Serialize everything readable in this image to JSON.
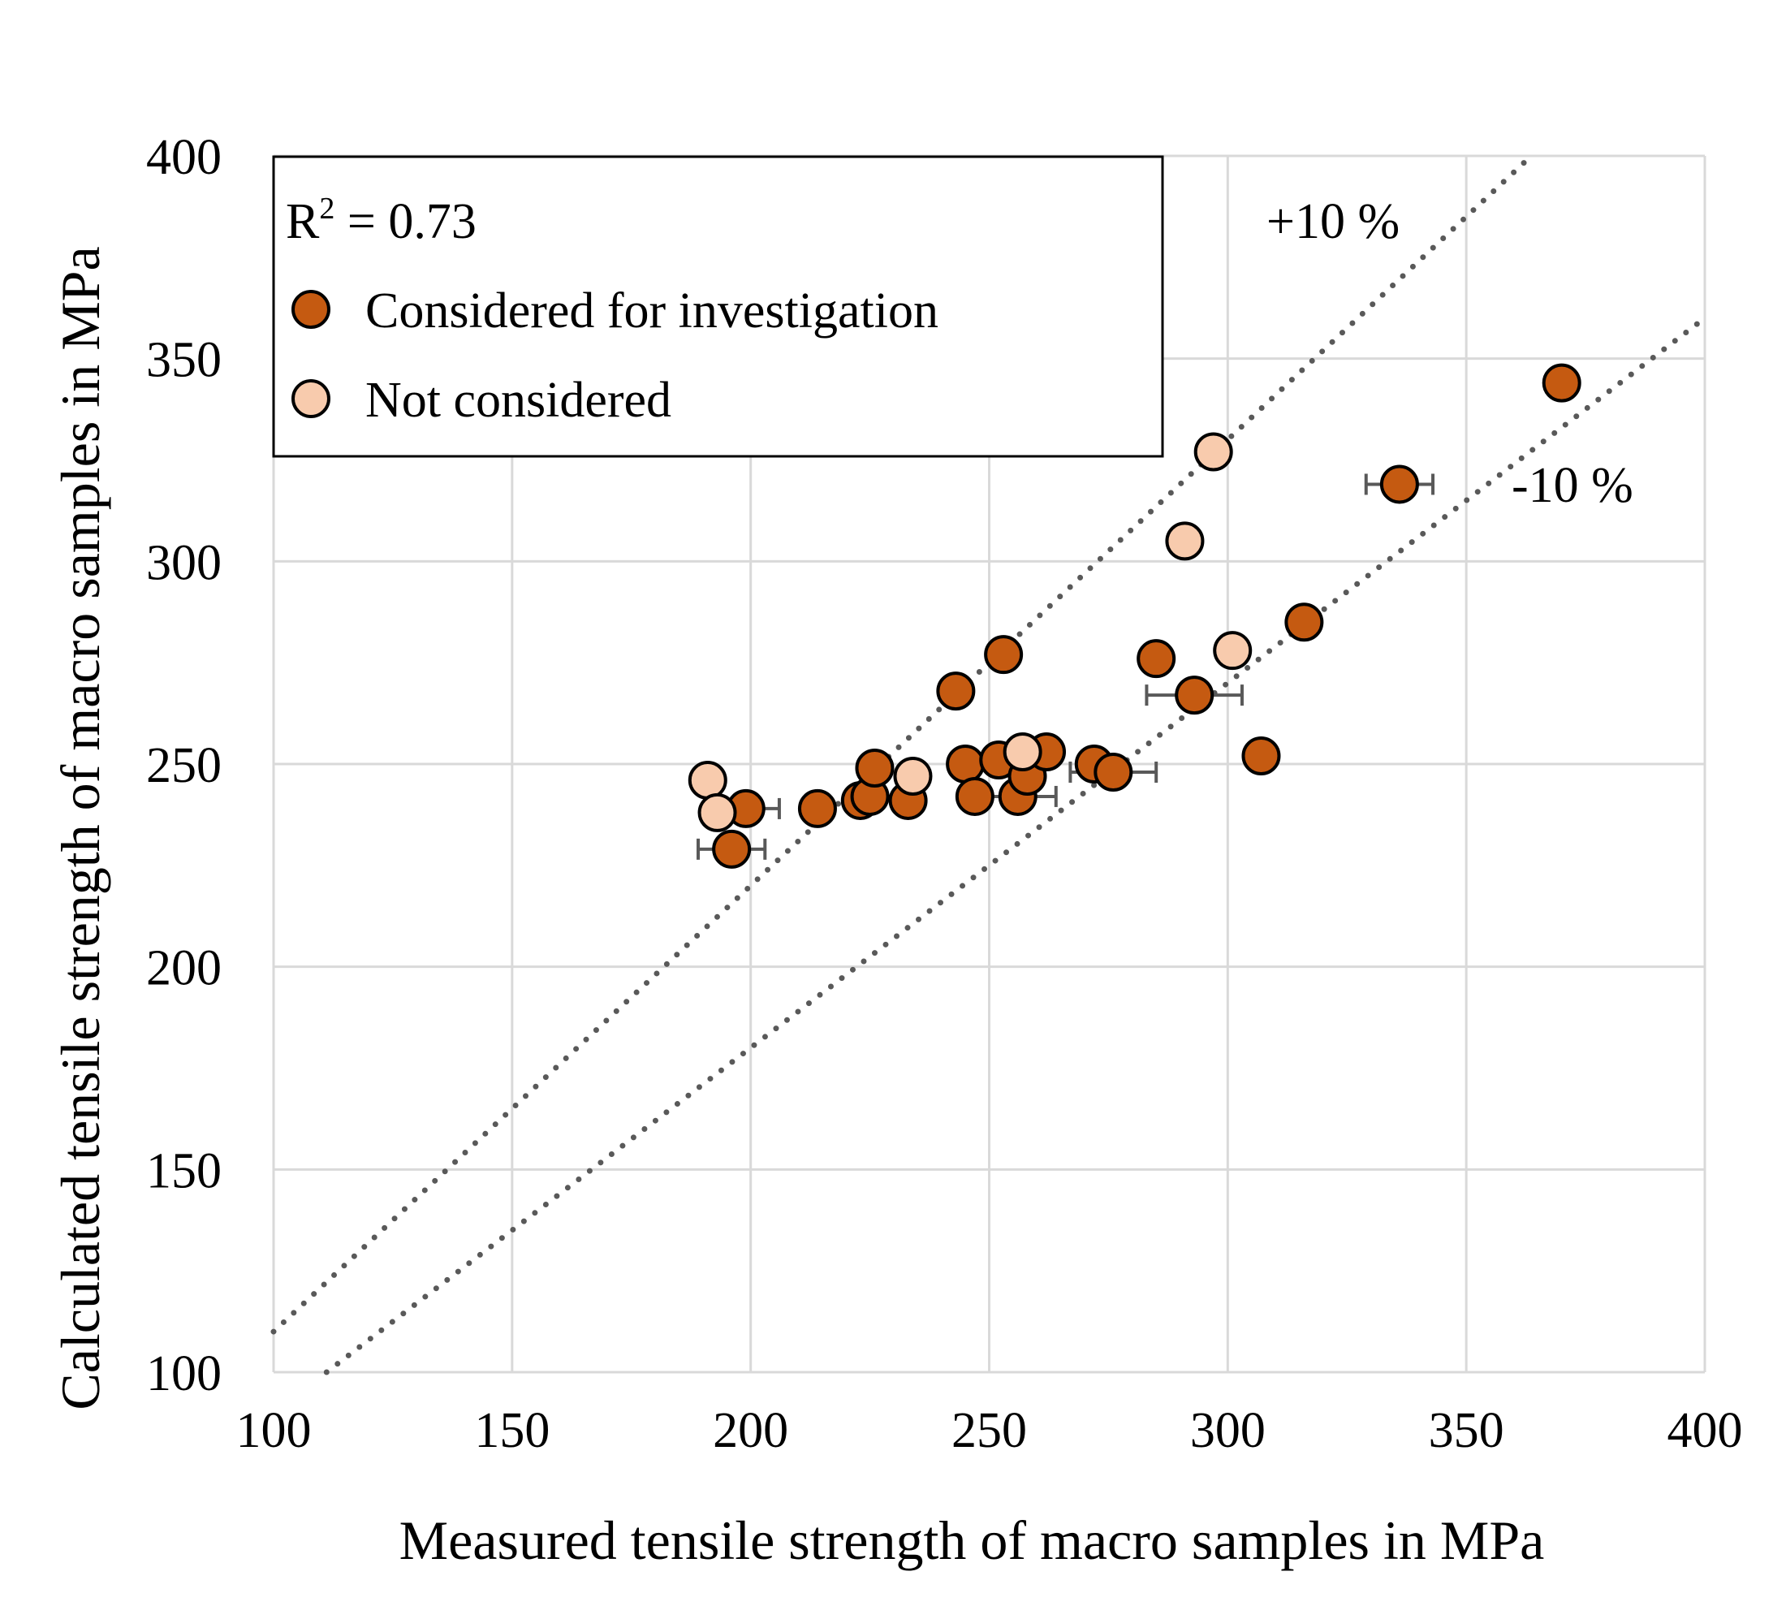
{
  "chart_data": {
    "type": "scatter",
    "xlabel": "Measured tensile strength of macro samples in MPa",
    "ylabel": "Calculated tensile strength of macro samples in MPa",
    "xlim": [
      100,
      400
    ],
    "ylim": [
      100,
      400
    ],
    "x_ticks": [
      "100",
      "150",
      "200",
      "250",
      "300",
      "350",
      "400"
    ],
    "y_ticks": [
      "100",
      "150",
      "200",
      "250",
      "300",
      "350",
      "400"
    ],
    "grid": true,
    "legend_position": "top-left",
    "r2_label": "R",
    "r2_sup": "2",
    "r2_value": " = 0.73",
    "guide_lines": [
      {
        "label": "+10 %",
        "slope": 1.1
      },
      {
        "label": "-10 %",
        "slope": 0.9
      }
    ],
    "series": [
      {
        "name": "Considered for investigation",
        "color": "#c55a11",
        "points": [
          {
            "x": 196,
            "y": 229,
            "xerr": 7
          },
          {
            "x": 199,
            "y": 239,
            "xerr": 7
          },
          {
            "x": 214,
            "y": 239,
            "xerr": 0
          },
          {
            "x": 223,
            "y": 241,
            "xerr": 0
          },
          {
            "x": 225,
            "y": 242,
            "xerr": 0
          },
          {
            "x": 226,
            "y": 249,
            "xerr": 0
          },
          {
            "x": 233,
            "y": 241,
            "xerr": 0
          },
          {
            "x": 243,
            "y": 268,
            "xerr": 0
          },
          {
            "x": 245,
            "y": 250,
            "xerr": 0
          },
          {
            "x": 247,
            "y": 242,
            "xerr": 0
          },
          {
            "x": 252,
            "y": 251,
            "xerr": 0
          },
          {
            "x": 253,
            "y": 277,
            "xerr": 0
          },
          {
            "x": 256,
            "y": 242,
            "xerr": 8
          },
          {
            "x": 258,
            "y": 247,
            "xerr": 0
          },
          {
            "x": 262,
            "y": 253,
            "xerr": 0
          },
          {
            "x": 272,
            "y": 250,
            "xerr": 0
          },
          {
            "x": 276,
            "y": 248,
            "xerr": 9
          },
          {
            "x": 285,
            "y": 276,
            "xerr": 0
          },
          {
            "x": 293,
            "y": 267,
            "xerr": 10
          },
          {
            "x": 307,
            "y": 252,
            "xerr": 0
          },
          {
            "x": 316,
            "y": 285,
            "xerr": 0
          },
          {
            "x": 336,
            "y": 319,
            "xerr": 7
          },
          {
            "x": 370,
            "y": 344,
            "xerr": 0
          }
        ]
      },
      {
        "name": "Not considered",
        "color": "#f8cbad",
        "points": [
          {
            "x": 191,
            "y": 246,
            "xerr": 0
          },
          {
            "x": 193,
            "y": 238,
            "xerr": 0
          },
          {
            "x": 234,
            "y": 247,
            "xerr": 0
          },
          {
            "x": 257,
            "y": 253,
            "xerr": 0
          },
          {
            "x": 291,
            "y": 305,
            "xerr": 0
          },
          {
            "x": 297,
            "y": 327,
            "xerr": 0
          },
          {
            "x": 301,
            "y": 278,
            "xerr": 0
          }
        ]
      }
    ]
  }
}
